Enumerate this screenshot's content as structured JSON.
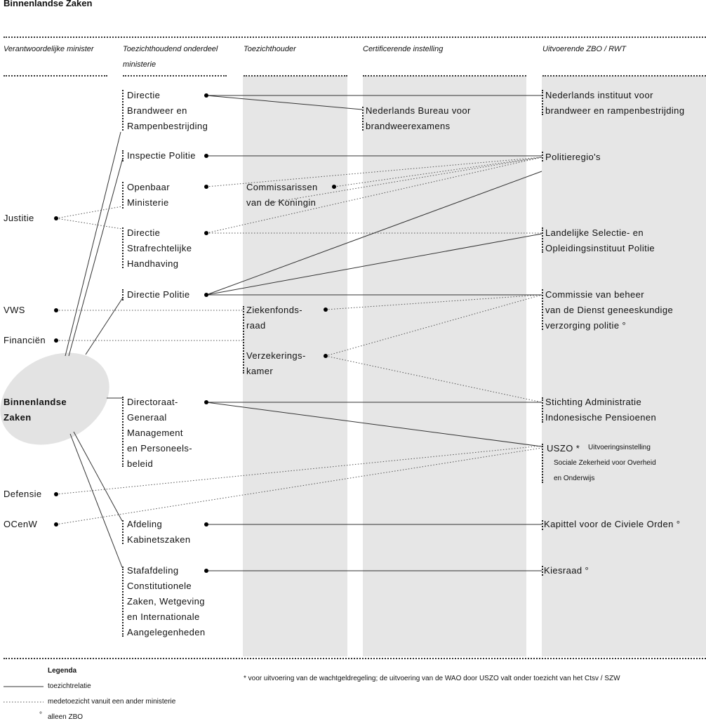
{
  "title": "Binnenlandse Zaken",
  "headers": [
    "Verantwoordelijke minister",
    "Toezichthoudend onderdeel",
    "ministerie",
    "Toezichthouder",
    "Certificerende instelling",
    "Uitvoerende ZBO / RWT"
  ],
  "ministers": [
    "Justitie",
    "VWS",
    "Financiën",
    "Defensie",
    "OCenW"
  ],
  "center": [
    "Binnenlandse",
    "Zaken"
  ],
  "departments": {
    "dbr": [
      "Directie",
      "Brandweer en",
      "Rampenbestrijding"
    ],
    "ip": [
      "Inspectie Politie"
    ],
    "om": [
      "Openbaar",
      "Ministerie"
    ],
    "dsh": [
      "Directie",
      "Strafrechtelijke",
      "Handhaving"
    ],
    "dp": [
      "Directie Politie"
    ],
    "dgm": [
      "Directoraat-",
      "Generaal",
      "Management",
      "en Personeels-",
      "beleid"
    ],
    "ak": [
      "Afdeling",
      "Kabinetszaken"
    ],
    "sc": [
      "Stafafdeling",
      "Constitutionele",
      "Zaken, Wetgeving",
      "en Internationale",
      "Aangelegenheden"
    ]
  },
  "supervisors": {
    "cdk": [
      "Commissarissen",
      "van de Koningin"
    ],
    "zfr": [
      "Ziekenfonds-",
      "raad"
    ],
    "vk": [
      "Verzekerings-",
      "kamer"
    ]
  },
  "certifiers": {
    "nbb": [
      "Nederlands Bureau voor",
      "brandweerexamens"
    ]
  },
  "executors": {
    "nibra": [
      "Nederlands instituut voor",
      "brandweer en rampenbestrijding"
    ],
    "pr": [
      "Politieregio's"
    ],
    "lsop": [
      "Landelijke Selectie- en",
      "Opleidingsinstituut Politie"
    ],
    "cvb": [
      "Commissie van beheer",
      "van de Dienst geneeskundige",
      "verzorging politie °"
    ],
    "saip": [
      "Stichting Administratie",
      "Indonesische Pensioenen"
    ],
    "uszo": {
      "name": "USZO *",
      "full": [
        "Uitvoeringsinstelling",
        "Sociale Zekerheid voor Overheid",
        "en Onderwijs"
      ]
    },
    "kco": [
      "Kapittel voor de Civiele Orden °"
    ],
    "kr": [
      "Kiesraad °"
    ]
  },
  "legend": {
    "title": "Legenda",
    "solid": "toezichtrelatie",
    "dotted": "medetoezicht vanuit een ander ministerie",
    "degree_symbol": "°",
    "degree": "alleen ZBO"
  },
  "footnote": "* voor uitvoering van de wachtgeldregeling; de uitvoering van de WAO door USZO valt onder toezicht van het Ctsv / SZW",
  "colors": {
    "band": "#e6e6e6",
    "ellipse": "#e3e3e3",
    "line": "#333333"
  }
}
